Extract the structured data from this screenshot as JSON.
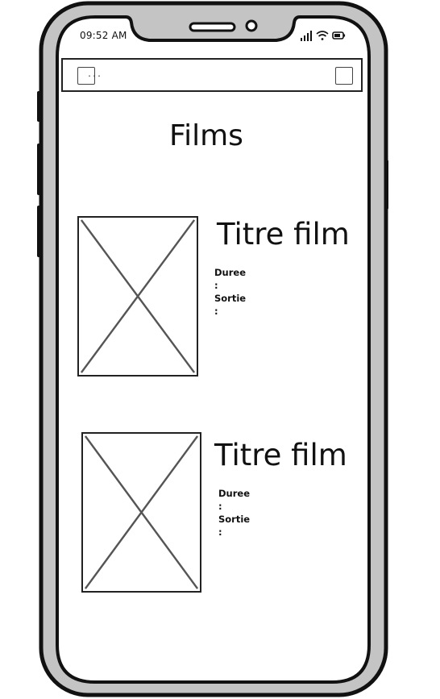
{
  "status_bar": {
    "time": "09:52 AM",
    "icons": [
      "signal-icon",
      "wifi-icon",
      "battery-icon"
    ]
  },
  "nav": {
    "menu_button_label": "...",
    "menu_icon": "ellipsis-icon",
    "right_button_icon": "square-icon"
  },
  "page": {
    "title": "Films"
  },
  "films": [
    {
      "title": "Titre film",
      "duration_label": "Duree :",
      "release_label": "Sortie :",
      "poster": "image-placeholder-icon"
    },
    {
      "title": "Titre film",
      "duration_label": "Duree :",
      "release_label": "Sortie :",
      "poster": "image-placeholder-icon"
    }
  ],
  "colors": {
    "frame": "#111111",
    "bezel": "#c4c4c4",
    "screen": "#ffffff",
    "line": "#555555"
  }
}
